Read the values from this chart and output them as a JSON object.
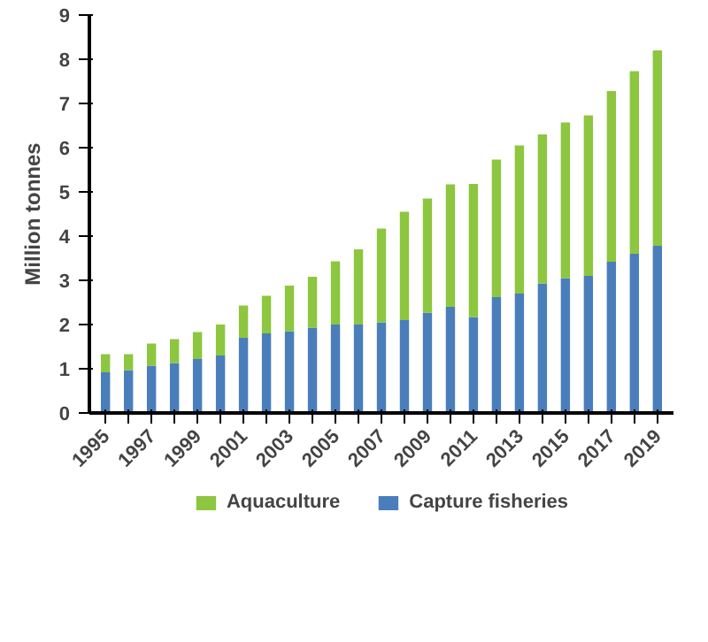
{
  "chart_data": {
    "type": "bar",
    "stacked": true,
    "ylabel": "Million tonnes",
    "categories": [
      "1995",
      null,
      "1997",
      null,
      "1999",
      null,
      "2001",
      null,
      "2003",
      null,
      "2005",
      null,
      "2007",
      null,
      "2009",
      null,
      "2011",
      null,
      "2013",
      null,
      "2015",
      null,
      "2017",
      null,
      "2019"
    ],
    "series": [
      {
        "name": "Capture fisheries",
        "color": "#4a7ebb",
        "values": [
          0.92,
          0.97,
          1.07,
          1.13,
          1.22,
          1.3,
          1.7,
          1.8,
          1.85,
          1.93,
          2.0,
          2.0,
          2.05,
          2.1,
          2.27,
          2.4,
          2.17,
          2.62,
          2.7,
          2.93,
          3.05,
          3.1,
          3.42,
          3.6,
          3.78
        ]
      },
      {
        "name": "Aquaculture",
        "color": "#8dc63f",
        "values": [
          0.41,
          0.36,
          0.5,
          0.54,
          0.61,
          0.7,
          0.73,
          0.85,
          1.03,
          1.15,
          1.43,
          1.7,
          2.12,
          2.45,
          2.58,
          2.77,
          3.01,
          3.11,
          3.35,
          3.37,
          3.52,
          3.63,
          3.86,
          4.13,
          4.42
        ]
      }
    ],
    "ylim": [
      0,
      9
    ],
    "yticks": [
      0,
      1,
      2,
      3,
      4,
      5,
      6,
      7,
      8,
      9
    ],
    "grid": false,
    "legend": "bottom"
  }
}
